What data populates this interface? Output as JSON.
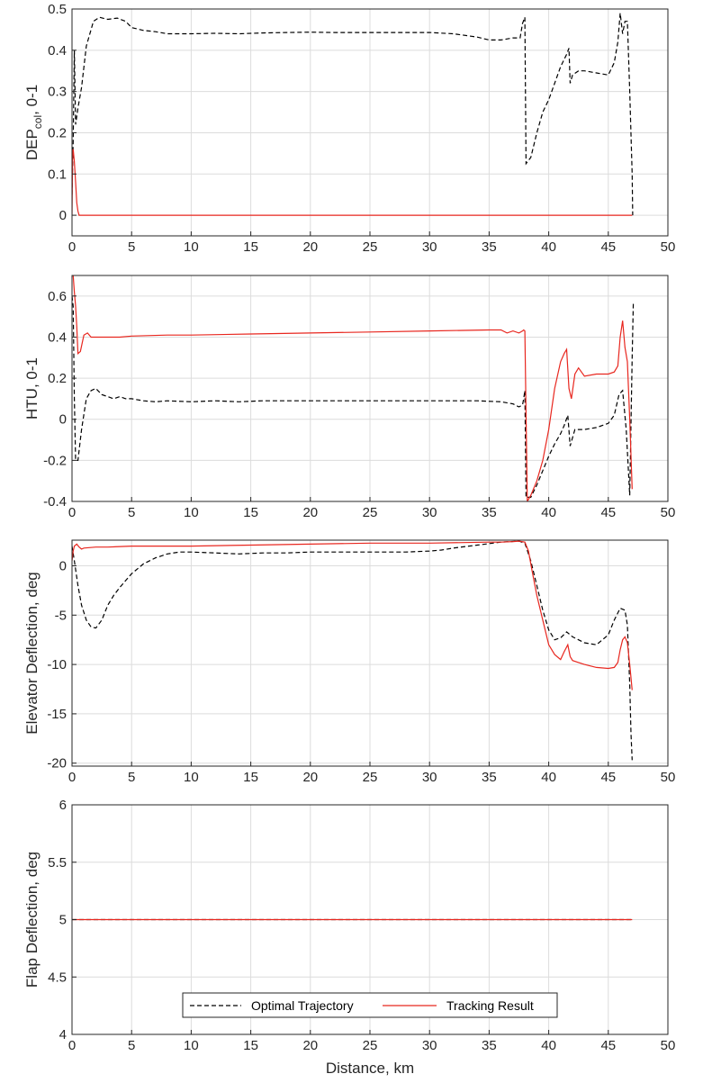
{
  "colors": {
    "optimal": "#000000",
    "tracking": "#e8271f",
    "grid": "#dcdcdc",
    "axis": "#262626"
  },
  "legend": {
    "entries": [
      "Optimal Trajectory",
      "Tracking Result"
    ],
    "placement": "bottom-center"
  },
  "chart_data": [
    {
      "type": "line",
      "ylabel": "DEP_col, 0-1",
      "ylabel_main": "DEP",
      "ylabel_sub": "col",
      "ylabel_rest": ", 0-1",
      "xlabel": "",
      "xlim": [
        0,
        50
      ],
      "ylim": [
        -0.05,
        0.5
      ],
      "xticks": [
        0,
        5,
        10,
        15,
        20,
        25,
        30,
        35,
        40,
        45,
        50
      ],
      "yticks": [
        0,
        0.1,
        0.2,
        0.3,
        0.4,
        0.5
      ],
      "ytick_labels": [
        "0",
        "0.1",
        "0.2",
        "0.3",
        "0.4",
        "0.5"
      ],
      "grid": true,
      "series": [
        {
          "name": "Optimal Trajectory",
          "style": "dashed",
          "x": [
            0,
            0.1,
            0.2,
            0.3,
            0.5,
            0.8,
            1.2,
            1.8,
            2.3,
            3,
            3.8,
            4.5,
            5,
            6,
            7,
            8,
            10,
            12,
            14,
            16,
            18,
            20,
            22,
            24,
            26,
            28,
            30,
            32,
            34,
            35,
            36,
            37,
            37.6,
            37.8,
            38.0,
            38.1,
            38.5,
            39,
            39.5,
            40,
            40.5,
            41,
            41.5,
            41.7,
            41.8,
            42,
            42.5,
            43,
            44,
            45,
            45.5,
            45.8,
            46.0,
            46.2,
            46.4,
            46.6,
            46.8,
            47.0,
            47.05
          ],
          "y": [
            0.05,
            0.18,
            0.4,
            0.22,
            0.26,
            0.31,
            0.41,
            0.47,
            0.48,
            0.475,
            0.478,
            0.47,
            0.455,
            0.448,
            0.445,
            0.44,
            0.44,
            0.441,
            0.44,
            0.442,
            0.443,
            0.444,
            0.443,
            0.443,
            0.443,
            0.443,
            0.443,
            0.44,
            0.432,
            0.425,
            0.425,
            0.43,
            0.43,
            0.465,
            0.48,
            0.125,
            0.14,
            0.2,
            0.25,
            0.28,
            0.32,
            0.36,
            0.39,
            0.405,
            0.32,
            0.34,
            0.35,
            0.35,
            0.345,
            0.34,
            0.37,
            0.42,
            0.49,
            0.44,
            0.47,
            0.47,
            0.3,
            0.1,
            0.0
          ]
        },
        {
          "name": "Tracking Result",
          "style": "solid",
          "x": [
            0,
            0.05,
            0.1,
            0.2,
            0.3,
            0.4,
            0.5,
            0.6,
            47
          ],
          "y": [
            0.0,
            0.155,
            0.16,
            0.13,
            0.08,
            0.03,
            0.01,
            0.0,
            0.0
          ]
        }
      ]
    },
    {
      "type": "line",
      "ylabel": "HTU, 0-1",
      "xlabel": "",
      "xlim": [
        0,
        50
      ],
      "ylim": [
        -0.4,
        0.7
      ],
      "xticks": [
        0,
        5,
        10,
        15,
        20,
        25,
        30,
        35,
        40,
        45,
        50
      ],
      "yticks": [
        -0.4,
        -0.2,
        0,
        0.2,
        0.4,
        0.6
      ],
      "ytick_labels": [
        "-0.4",
        "-0.2",
        "0",
        "0.2",
        "0.4",
        "0.6"
      ],
      "grid": true,
      "series": [
        {
          "name": "Optimal Trajectory",
          "style": "dashed",
          "x": [
            0,
            0.1,
            0.2,
            0.3,
            0.5,
            0.8,
            1.2,
            1.6,
            2,
            2.5,
            3,
            3.5,
            4,
            4.5,
            5,
            6,
            7,
            8,
            10,
            12,
            14,
            16,
            18,
            20,
            22,
            24,
            26,
            28,
            30,
            32,
            34,
            36,
            37,
            37.5,
            37.8,
            37.9,
            38.0,
            38.1,
            38.5,
            39,
            39.5,
            40,
            40.5,
            41,
            41.3,
            41.6,
            41.8,
            42.2,
            43,
            44,
            45,
            45.5,
            45.9,
            46.2,
            46.5,
            46.8,
            47.0,
            47.1
          ],
          "y": [
            0.6,
            0.55,
            0.1,
            -0.2,
            -0.2,
            -0.05,
            0.1,
            0.14,
            0.15,
            0.12,
            0.11,
            0.1,
            0.11,
            0.1,
            0.1,
            0.09,
            0.085,
            0.09,
            0.085,
            0.09,
            0.085,
            0.09,
            0.09,
            0.09,
            0.09,
            0.09,
            0.09,
            0.09,
            0.09,
            0.09,
            0.09,
            0.085,
            0.075,
            0.06,
            0.07,
            0.1,
            0.14,
            -0.38,
            -0.38,
            -0.32,
            -0.25,
            -0.18,
            -0.12,
            -0.07,
            -0.03,
            0.02,
            -0.13,
            -0.05,
            -0.05,
            -0.04,
            -0.02,
            0.02,
            0.12,
            0.14,
            -0.05,
            -0.37,
            0.3,
            0.57
          ]
        },
        {
          "name": "Tracking Result",
          "style": "solid",
          "x": [
            0,
            0.1,
            0.2,
            0.3,
            0.4,
            0.5,
            0.7,
            1,
            1.3,
            1.6,
            2,
            3,
            4,
            5,
            8,
            10,
            15,
            20,
            25,
            30,
            35,
            36,
            36.5,
            37,
            37.5,
            37.8,
            37.9,
            38.0,
            38.2,
            38.5,
            39,
            39.5,
            40,
            40.5,
            41,
            41.3,
            41.5,
            41.7,
            41.9,
            42.2,
            42.5,
            43,
            44,
            45,
            45.5,
            45.8,
            46.0,
            46.2,
            46.4,
            46.6,
            46.8,
            47.0
          ],
          "y": [
            0.72,
            0.7,
            0.62,
            0.55,
            0.45,
            0.32,
            0.33,
            0.41,
            0.42,
            0.4,
            0.4,
            0.4,
            0.4,
            0.405,
            0.41,
            0.41,
            0.415,
            0.42,
            0.425,
            0.43,
            0.435,
            0.435,
            0.42,
            0.43,
            0.42,
            0.43,
            0.435,
            0.43,
            -0.4,
            -0.37,
            -0.3,
            -0.2,
            -0.05,
            0.15,
            0.28,
            0.32,
            0.34,
            0.15,
            0.1,
            0.22,
            0.25,
            0.21,
            0.22,
            0.22,
            0.23,
            0.26,
            0.4,
            0.48,
            0.35,
            0.28,
            0.0,
            -0.34
          ]
        }
      ]
    },
    {
      "type": "line",
      "ylabel": "Elevator Deflection, deg",
      "xlabel": "",
      "xlim": [
        0,
        50
      ],
      "ylim": [
        -20.3,
        2.6
      ],
      "xticks": [
        0,
        5,
        10,
        15,
        20,
        25,
        30,
        35,
        40,
        45,
        50
      ],
      "yticks": [
        -20,
        -15,
        -10,
        -5,
        0
      ],
      "ytick_labels": [
        "-20",
        "-15",
        "-10",
        "-5",
        "0"
      ],
      "grid": true,
      "series": [
        {
          "name": "Optimal Trajectory",
          "style": "dashed",
          "x": [
            0,
            0.2,
            0.5,
            0.8,
            1.2,
            1.6,
            2,
            2.5,
            3,
            3.5,
            4,
            4.5,
            5,
            6,
            7,
            8,
            9,
            10,
            12,
            14,
            16,
            18,
            20,
            22,
            24,
            26,
            28,
            30,
            31,
            32,
            34,
            36,
            37.5,
            38,
            38.5,
            39,
            39.5,
            40,
            40.5,
            41,
            41.5,
            42,
            42.5,
            43,
            44,
            45,
            45.5,
            46,
            46.4,
            46.6,
            46.8,
            46.9,
            47.0
          ],
          "y": [
            2.0,
            0.5,
            -2.0,
            -4.0,
            -5.5,
            -6.2,
            -6.3,
            -5.5,
            -4.0,
            -3.0,
            -2.2,
            -1.5,
            -0.8,
            0.2,
            0.8,
            1.2,
            1.4,
            1.4,
            1.3,
            1.2,
            1.3,
            1.3,
            1.4,
            1.4,
            1.4,
            1.4,
            1.4,
            1.5,
            1.6,
            1.8,
            2.1,
            2.4,
            2.5,
            2.3,
            0.5,
            -2.0,
            -4.5,
            -6.5,
            -7.5,
            -7.3,
            -6.7,
            -7.2,
            -7.5,
            -7.8,
            -8.0,
            -7.0,
            -5.5,
            -4.3,
            -4.5,
            -6.0,
            -12.0,
            -17.0,
            -19.7
          ]
        },
        {
          "name": "Tracking Result",
          "style": "solid",
          "x": [
            0,
            0.1,
            0.2,
            0.4,
            0.6,
            0.8,
            1,
            2,
            3,
            5,
            8,
            10,
            15,
            20,
            25,
            30,
            35,
            36,
            37,
            37.5,
            38,
            38.3,
            38.6,
            39,
            39.5,
            40,
            40.5,
            41,
            41.3,
            41.6,
            41.8,
            42,
            42.5,
            43,
            44,
            45,
            45.5,
            45.8,
            46.0,
            46.2,
            46.4,
            46.6,
            46.8,
            47.0
          ],
          "y": [
            0.5,
            1.5,
            2.0,
            2.2,
            1.9,
            1.7,
            1.8,
            1.9,
            1.9,
            2.0,
            2.0,
            2.0,
            2.1,
            2.2,
            2.3,
            2.3,
            2.4,
            2.4,
            2.45,
            2.5,
            2.4,
            1.5,
            -0.5,
            -3.0,
            -5.5,
            -8.0,
            -9.0,
            -9.5,
            -8.7,
            -8.0,
            -9.2,
            -9.6,
            -9.8,
            -10.0,
            -10.3,
            -10.4,
            -10.3,
            -9.8,
            -8.5,
            -7.5,
            -7.2,
            -7.8,
            -10.0,
            -12.6
          ]
        }
      ]
    },
    {
      "type": "line",
      "ylabel": "Flap Deflection, deg",
      "xlabel": "Distance, km",
      "xlim": [
        0,
        50
      ],
      "ylim": [
        4,
        6
      ],
      "xticks": [
        0,
        5,
        10,
        15,
        20,
        25,
        30,
        35,
        40,
        45,
        50
      ],
      "yticks": [
        4,
        4.5,
        5,
        5.5,
        6
      ],
      "ytick_labels": [
        "4",
        "4.5",
        "5",
        "5.5",
        "6"
      ],
      "grid": true,
      "series": [
        {
          "name": "Optimal Trajectory",
          "style": "dashed",
          "x": [
            0,
            47
          ],
          "y": [
            5,
            5
          ]
        },
        {
          "name": "Tracking Result",
          "style": "solid",
          "x": [
            0,
            47
          ],
          "y": [
            5,
            5
          ]
        }
      ]
    }
  ]
}
